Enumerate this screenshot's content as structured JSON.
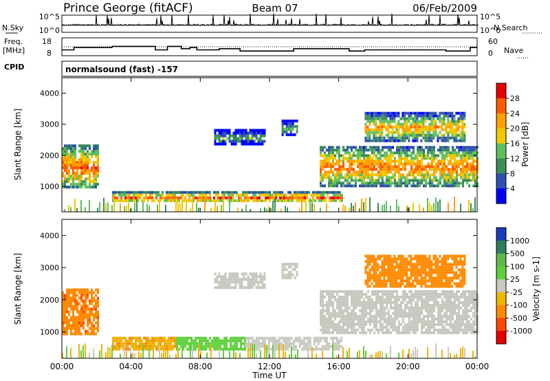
{
  "header": {
    "station": "Prince George (fitACF)",
    "beam": "Beam 07",
    "date": "06/Feb/2009"
  },
  "nsky": {
    "label": "N.Sky",
    "tick_top": "10^5",
    "tick_bottom": "10^0",
    "right_label": "N.Search",
    "right_tick_top": "10^5",
    "right_tick_bottom": "10^0"
  },
  "freq": {
    "label_1": "Freq.",
    "label_2": "[MHz]",
    "tick_top": "18",
    "tick_bottom": "8",
    "right_label": "Nave",
    "right_tick_top": "60",
    "right_tick_bottom": "0"
  },
  "cpid": {
    "label": "CPID",
    "value": "normalsound (fast) -157"
  },
  "power_panel": {
    "ylabel": "Slant Range [km]",
    "yticks": [
      "4000",
      "3000",
      "2000",
      "1000"
    ],
    "colorbar_label": "Power [dB]",
    "colorbar_ticks": [
      "28",
      "24",
      "20",
      "16",
      "12",
      "8",
      "4"
    ],
    "colors": [
      "#0000ff",
      "#2e4fb3",
      "#3c8c5a",
      "#5fbf5f",
      "#f0c800",
      "#ff9f00",
      "#ff5a00",
      "#e60000"
    ]
  },
  "velocity_panel": {
    "ylabel": "Slant Range [km]",
    "yticks": [
      "4000",
      "3000",
      "2000",
      "1000"
    ],
    "colorbar_label": "Velocity [m s-1]",
    "colorbar_ticks": [
      "1000",
      "500",
      "100",
      "25",
      "-25",
      "-100",
      "-500",
      "-1000"
    ],
    "colors": [
      "#1a3cb4",
      "#2e7f5e",
      "#5fb84a",
      "#5fd03c",
      "#c8c8c0",
      "#f0b400",
      "#ff8a00",
      "#ff4600",
      "#e60000"
    ]
  },
  "xaxis": {
    "label": "Time UT",
    "ticks": [
      "00:00",
      "04:00",
      "08:00",
      "12:00",
      "16:00",
      "20:00",
      "00:00"
    ]
  },
  "chart_data": {
    "type": "heatmap",
    "x_range_hours": [
      0,
      24
    ],
    "y_range_km": [
      180,
      4500
    ],
    "panels": [
      {
        "name": "Power [dB]",
        "regions": [
          {
            "t": [
              0.0,
              2.1
            ],
            "range": [
              950,
              2350
            ],
            "value": 18
          },
          {
            "t": [
              2.9,
              16.2
            ],
            "range": [
              500,
              850
            ],
            "value": 18
          },
          {
            "t": [
              8.8,
              11.7
            ],
            "range": [
              2350,
              2850
            ],
            "value": 6
          },
          {
            "t": [
              12.7,
              13.6
            ],
            "range": [
              2650,
              3150
            ],
            "value": 6
          },
          {
            "t": [
              14.9,
              24.0
            ],
            "range": [
              1000,
              2300
            ],
            "value": 17
          },
          {
            "t": [
              17.5,
              23.3
            ],
            "range": [
              2450,
              3400
            ],
            "value": 14
          }
        ]
      },
      {
        "name": "Velocity [m s-1]",
        "regions": [
          {
            "t": [
              0.0,
              2.1
            ],
            "range": [
              950,
              2350
            ],
            "value": -400
          },
          {
            "t": [
              2.9,
              6.6
            ],
            "range": [
              500,
              850
            ],
            "value": -80
          },
          {
            "t": [
              6.6,
              10.6
            ],
            "range": [
              500,
              850
            ],
            "value": 60
          },
          {
            "t": [
              10.6,
              16.2
            ],
            "range": [
              500,
              850
            ],
            "value": 0
          },
          {
            "t": [
              8.8,
              11.7
            ],
            "range": [
              2350,
              2850
            ],
            "value": 0
          },
          {
            "t": [
              12.7,
              13.6
            ],
            "range": [
              2650,
              3150
            ],
            "value": 0
          },
          {
            "t": [
              14.9,
              24.0
            ],
            "range": [
              1000,
              2300
            ],
            "value": 0
          },
          {
            "t": [
              17.5,
              23.3
            ],
            "range": [
              2450,
              3400
            ],
            "value": -300
          }
        ]
      }
    ],
    "frequency_MHz": {
      "t": [
        0,
        0.7,
        0.7,
        2.9,
        2.9,
        5.4,
        5.4,
        6.1,
        6.1,
        6.9,
        6.9,
        7.4,
        7.4,
        7.8,
        7.8,
        9.1,
        9.1,
        10.3,
        10.3,
        13.4,
        13.4,
        16.6,
        16.6,
        17.5,
        17.5,
        22.2,
        22.2,
        23.6,
        23.6,
        24
      ],
      "v": [
        13,
        13,
        15,
        15,
        16,
        16,
        13,
        13,
        16,
        16,
        14,
        14,
        15,
        15,
        13,
        13,
        14,
        14,
        12,
        12,
        14,
        14,
        12,
        12,
        13,
        13,
        12,
        12,
        15,
        15
      ]
    },
    "nave_reference": 30
  }
}
